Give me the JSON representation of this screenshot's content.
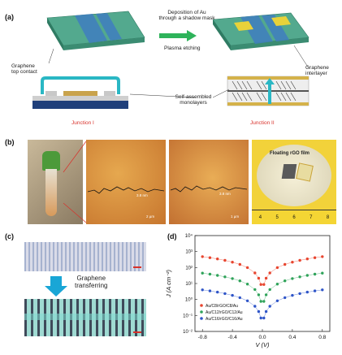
{
  "panel_a": {
    "label": "(a)",
    "step1": "Deposition of Au",
    "step2": "through a shadow mask",
    "step3": "Plasma etching",
    "graphene_top_contact_1": "Graphene",
    "graphene_top_contact_2": "top contact",
    "graphene_interlayer_1": "Graphene",
    "graphene_interlayer_2": "interlayer",
    "sam_1": "Self-assembled",
    "sam_2": "monolayers",
    "junction1": "Junction I",
    "junction2": "Junction II"
  },
  "panel_b": {
    "label": "(b)",
    "scale1": "2 µm",
    "scale2": "1 µm",
    "height1": "3.8 nm",
    "height2": "3.8 nm",
    "floating": "Floating rGO film",
    "ruler": [
      "4",
      "5",
      "6",
      "7",
      "8"
    ]
  },
  "panel_c": {
    "label": "(c)",
    "transfer_1": "Graphene",
    "transfer_2": "transferring"
  },
  "panel_d": {
    "label": "(d)"
  },
  "chart_data": {
    "type": "scatter",
    "xlabel": "V (V)",
    "ylabel": "J (A cm⁻²)",
    "xlim": [
      -0.9,
      0.9
    ],
    "ylim_log10": [
      -2,
      4
    ],
    "x_ticks": [
      "-0.8",
      "-0.4",
      "0.0",
      "0.4",
      "0.8"
    ],
    "y_ticks": [
      "10⁻²",
      "10⁻¹",
      "10⁰",
      "10¹",
      "10²",
      "10³",
      "10⁴"
    ],
    "legend_position": "bottom-left",
    "series": [
      {
        "name": "Au/C8/rGO/C8/Au",
        "color": "#e8452f",
        "base": 480,
        "min": 1.8
      },
      {
        "name": "Au/C12/rGO/C12/Au",
        "color": "#2fa35a",
        "base": 45,
        "min": 0.12
      },
      {
        "name": "Au/C16/rGO/C16/Au",
        "color": "#2f55c8",
        "base": 4,
        "min": 0.012
      }
    ],
    "x": [
      -0.8,
      -0.7,
      -0.6,
      -0.5,
      -0.4,
      -0.3,
      -0.2,
      -0.1,
      -0.05,
      -0.02,
      0.02,
      0.05,
      0.1,
      0.2,
      0.3,
      0.4,
      0.5,
      0.6,
      0.7,
      0.8
    ]
  }
}
